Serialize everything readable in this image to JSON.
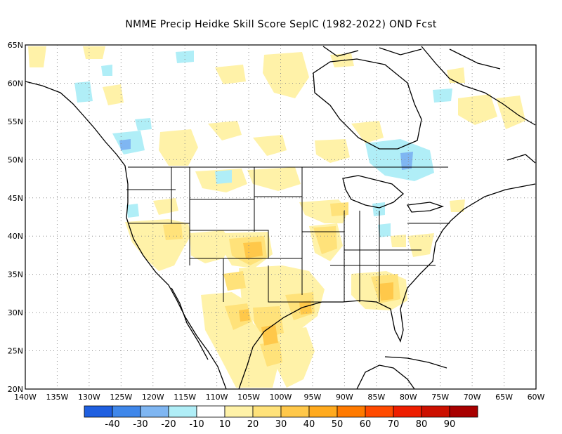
{
  "title": "NMME Precip Heidke Skill Score SepIC (1982-2022) OND Fcst",
  "map": {
    "lon_range": [
      -140,
      -60
    ],
    "lat_range": [
      20,
      65
    ],
    "grid_lines": "dotted",
    "y_ticks": [
      {
        "value": 65,
        "label": "65N"
      },
      {
        "value": 60,
        "label": "60N"
      },
      {
        "value": 55,
        "label": "55N"
      },
      {
        "value": 50,
        "label": "50N"
      },
      {
        "value": 45,
        "label": "45N"
      },
      {
        "value": 40,
        "label": "40N"
      },
      {
        "value": 35,
        "label": "35N"
      },
      {
        "value": 30,
        "label": "30N"
      },
      {
        "value": 25,
        "label": "25N"
      },
      {
        "value": 20,
        "label": "20N"
      }
    ],
    "x_ticks": [
      {
        "value": -140,
        "label": "140W"
      },
      {
        "value": -135,
        "label": "135W"
      },
      {
        "value": -130,
        "label": "130W"
      },
      {
        "value": -125,
        "label": "125W"
      },
      {
        "value": -120,
        "label": "120W"
      },
      {
        "value": -115,
        "label": "115W"
      },
      {
        "value": -110,
        "label": "110W"
      },
      {
        "value": -105,
        "label": "105W"
      },
      {
        "value": -100,
        "label": "100W"
      },
      {
        "value": -95,
        "label": "95W"
      },
      {
        "value": -90,
        "label": "90W"
      },
      {
        "value": -85,
        "label": "85W"
      },
      {
        "value": -80,
        "label": "80W"
      },
      {
        "value": -75,
        "label": "75W"
      },
      {
        "value": -70,
        "label": "70W"
      },
      {
        "value": -65,
        "label": "65W"
      },
      {
        "value": -60,
        "label": "60W"
      }
    ]
  },
  "colorbar": {
    "colors": [
      "#1f5fe0",
      "#3f87ea",
      "#7fb6f2",
      "#b0eef7",
      "#ffffff",
      "#fff2a8",
      "#ffe27a",
      "#ffc84a",
      "#ffaa1e",
      "#ff7a00",
      "#ff4a00",
      "#ee1e00",
      "#cc1000",
      "#a80000"
    ],
    "labels": [
      "-40",
      "-30",
      "-20",
      "-10",
      "10",
      "20",
      "30",
      "40",
      "50",
      "60",
      "70",
      "80",
      "90"
    ]
  }
}
